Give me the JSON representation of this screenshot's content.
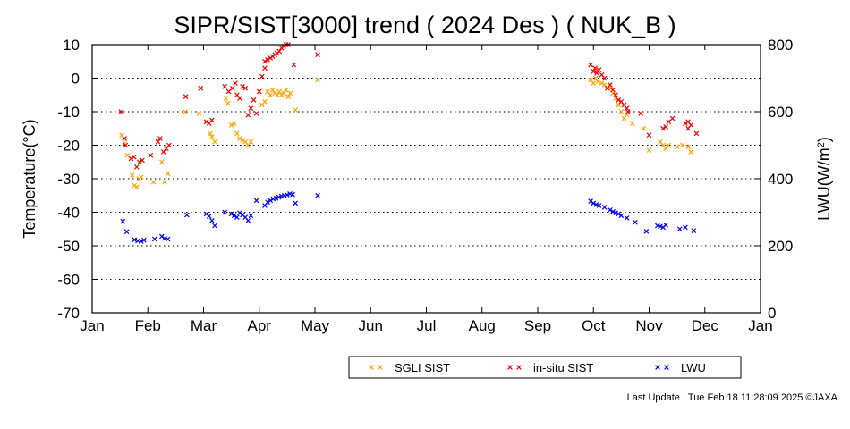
{
  "chart_data": {
    "type": "scatter",
    "title": "SIPR/SIST[3000] trend ( 2024 Des ) ( NUK_B )",
    "ylabel": "Temperature(°C)",
    "y2label_base": "LWU(W/m",
    "y2label_sup": "2",
    "y2label_end": ")",
    "xlim": [
      0,
      12
    ],
    "ylim": [
      -70,
      10
    ],
    "y2lim": [
      0,
      800
    ],
    "grid": "dotted horizontal",
    "legend_position": "bottom-right",
    "x_ticks": [
      "Jan",
      "Feb",
      "Mar",
      "Apr",
      "May",
      "Jun",
      "Jul",
      "Aug",
      "Sep",
      "Oct",
      "Nov",
      "Dec",
      "Jan"
    ],
    "y_ticks": [
      "10",
      "0",
      "-10",
      "-20",
      "-30",
      "-40",
      "-50",
      "-60",
      "-70"
    ],
    "y2_ticks": [
      "800",
      "600",
      "400",
      "200",
      "0"
    ],
    "series": [
      {
        "name": "SGLI SIST",
        "color": "#ffa500",
        "axis": "left",
        "points": [
          [
            0.53,
            -17
          ],
          [
            0.58,
            -19.5
          ],
          [
            0.63,
            -23
          ],
          [
            0.72,
            -29
          ],
          [
            0.76,
            -32
          ],
          [
            0.8,
            -32.5
          ],
          [
            0.84,
            -30
          ],
          [
            0.88,
            -29.5
          ],
          [
            1.1,
            -31
          ],
          [
            1.25,
            -25
          ],
          [
            1.3,
            -31
          ],
          [
            1.36,
            -28.5
          ],
          [
            1.67,
            -10
          ],
          [
            1.92,
            -10.5
          ],
          [
            2.05,
            -13
          ],
          [
            2.12,
            -16.5
          ],
          [
            2.15,
            -17.5
          ],
          [
            2.2,
            -19
          ],
          [
            2.4,
            -6
          ],
          [
            2.44,
            -7.5
          ],
          [
            2.5,
            -14
          ],
          [
            2.55,
            -13.5
          ],
          [
            2.6,
            -16.5
          ],
          [
            2.65,
            -18
          ],
          [
            2.7,
            -18.5
          ],
          [
            2.75,
            -19
          ],
          [
            2.8,
            -20
          ],
          [
            2.85,
            -19
          ],
          [
            2.9,
            -6.5
          ],
          [
            3.05,
            -8
          ],
          [
            3.1,
            -7
          ],
          [
            3.15,
            -4
          ],
          [
            3.2,
            -5
          ],
          [
            3.24,
            -3.5
          ],
          [
            3.28,
            -4.5
          ],
          [
            3.32,
            -5
          ],
          [
            3.36,
            -4
          ],
          [
            3.4,
            -5
          ],
          [
            3.44,
            -4.5
          ],
          [
            3.48,
            -3.5
          ],
          [
            3.52,
            -5.5
          ],
          [
            3.56,
            -4.5
          ],
          [
            3.65,
            -9.5
          ],
          [
            4.05,
            -0.5
          ],
          [
            8.95,
            -0.5
          ],
          [
            9.0,
            -1.5
          ],
          [
            9.04,
            0
          ],
          [
            9.08,
            -1
          ],
          [
            9.15,
            -1.5
          ],
          [
            9.2,
            -2
          ],
          [
            9.3,
            -3
          ],
          [
            9.35,
            -4.5
          ],
          [
            9.4,
            -6
          ],
          [
            9.45,
            -8
          ],
          [
            9.5,
            -10
          ],
          [
            9.55,
            -12
          ],
          [
            9.6,
            -11
          ],
          [
            9.7,
            -13.5
          ],
          [
            9.9,
            -15
          ],
          [
            10.0,
            -21.5
          ],
          [
            10.2,
            -19
          ],
          [
            10.25,
            -20
          ],
          [
            10.3,
            -21
          ],
          [
            10.35,
            -20
          ],
          [
            10.5,
            -20.5
          ],
          [
            10.6,
            -20
          ],
          [
            10.7,
            -20.5
          ],
          [
            10.75,
            -22
          ]
        ]
      },
      {
        "name": "in-situ SIST",
        "color": "#ff0000",
        "axis": "left",
        "points": [
          [
            0.52,
            -10
          ],
          [
            0.58,
            -18
          ],
          [
            0.6,
            -20
          ],
          [
            0.7,
            -24
          ],
          [
            0.75,
            -23.5
          ],
          [
            0.8,
            -26.5
          ],
          [
            0.85,
            -25
          ],
          [
            0.9,
            -24.5
          ],
          [
            1.05,
            -23
          ],
          [
            1.18,
            -19
          ],
          [
            1.22,
            -18
          ],
          [
            1.28,
            -22
          ],
          [
            1.33,
            -21
          ],
          [
            1.38,
            -20
          ],
          [
            1.68,
            -5.5
          ],
          [
            1.95,
            -3
          ],
          [
            2.05,
            -13
          ],
          [
            2.1,
            -13.5
          ],
          [
            2.15,
            -12.5
          ],
          [
            2.38,
            -2.5
          ],
          [
            2.45,
            -4
          ],
          [
            2.52,
            -3
          ],
          [
            2.57,
            -1.5
          ],
          [
            2.6,
            -5
          ],
          [
            2.65,
            -6
          ],
          [
            2.7,
            -2.5
          ],
          [
            2.75,
            -3
          ],
          [
            2.8,
            -11
          ],
          [
            2.85,
            -9
          ],
          [
            2.9,
            -6.5
          ],
          [
            2.95,
            -10.5
          ],
          [
            3.0,
            -4
          ],
          [
            3.05,
            0.5
          ],
          [
            3.1,
            5
          ],
          [
            3.15,
            5.5
          ],
          [
            3.2,
            6
          ],
          [
            3.24,
            6.5
          ],
          [
            3.28,
            7
          ],
          [
            3.32,
            7.5
          ],
          [
            3.36,
            8
          ],
          [
            3.4,
            9
          ],
          [
            3.44,
            9.5
          ],
          [
            3.48,
            10
          ],
          [
            3.52,
            10
          ],
          [
            3.1,
            3
          ],
          [
            3.62,
            4
          ],
          [
            4.05,
            7
          ],
          [
            8.95,
            4
          ],
          [
            9.0,
            2
          ],
          [
            9.03,
            3
          ],
          [
            9.06,
            1.5
          ],
          [
            9.1,
            2.5
          ],
          [
            9.15,
            1
          ],
          [
            9.2,
            0
          ],
          [
            9.25,
            -3
          ],
          [
            9.3,
            -2
          ],
          [
            9.35,
            -3.5
          ],
          [
            9.4,
            -5
          ],
          [
            9.45,
            -6.5
          ],
          [
            9.5,
            -7
          ],
          [
            9.55,
            -8
          ],
          [
            9.6,
            -9
          ],
          [
            9.62,
            -10
          ],
          [
            9.85,
            -10.5
          ],
          [
            10.0,
            -17
          ],
          [
            10.25,
            -15
          ],
          [
            10.3,
            -14.5
          ],
          [
            10.35,
            -13
          ],
          [
            10.42,
            -12
          ],
          [
            10.65,
            -13.5
          ],
          [
            10.7,
            -15
          ],
          [
            10.75,
            -14
          ],
          [
            10.85,
            -16.5
          ],
          [
            10.7,
            -13
          ]
        ]
      },
      {
        "name": "LWU",
        "color": "#0000ff",
        "axis": "right",
        "points": [
          [
            0.55,
            273
          ],
          [
            0.62,
            242
          ],
          [
            0.76,
            218
          ],
          [
            0.82,
            215
          ],
          [
            0.88,
            213
          ],
          [
            0.93,
            217
          ],
          [
            1.12,
            220
          ],
          [
            1.25,
            228
          ],
          [
            1.3,
            222
          ],
          [
            1.36,
            220
          ],
          [
            1.7,
            292
          ],
          [
            2.05,
            295
          ],
          [
            2.1,
            288
          ],
          [
            2.15,
            275
          ],
          [
            2.2,
            260
          ],
          [
            2.38,
            300
          ],
          [
            2.5,
            295
          ],
          [
            2.55,
            290
          ],
          [
            2.6,
            285
          ],
          [
            2.65,
            298
          ],
          [
            2.7,
            292
          ],
          [
            2.75,
            285
          ],
          [
            2.8,
            275
          ],
          [
            2.85,
            290
          ],
          [
            2.95,
            335
          ],
          [
            3.1,
            320
          ],
          [
            3.15,
            330
          ],
          [
            3.2,
            335
          ],
          [
            3.25,
            340
          ],
          [
            3.3,
            342
          ],
          [
            3.35,
            345
          ],
          [
            3.4,
            348
          ],
          [
            3.45,
            350
          ],
          [
            3.5,
            352
          ],
          [
            3.55,
            355
          ],
          [
            3.6,
            353
          ],
          [
            3.65,
            327
          ],
          [
            4.05,
            350
          ],
          [
            8.95,
            333
          ],
          [
            9.0,
            327
          ],
          [
            9.05,
            323
          ],
          [
            9.1,
            320
          ],
          [
            9.2,
            315
          ],
          [
            9.3,
            307
          ],
          [
            9.35,
            302
          ],
          [
            9.4,
            298
          ],
          [
            9.45,
            295
          ],
          [
            9.5,
            290
          ],
          [
            9.6,
            283
          ],
          [
            9.75,
            270
          ],
          [
            9.95,
            243
          ],
          [
            10.15,
            260
          ],
          [
            10.2,
            258
          ],
          [
            10.25,
            255
          ],
          [
            10.3,
            262
          ],
          [
            10.55,
            250
          ],
          [
            10.65,
            255
          ],
          [
            10.8,
            245
          ]
        ]
      }
    ]
  },
  "footer": {
    "last_update": "Last Update : Tue Feb 18 11:28:09 2025  ©JAXA"
  }
}
